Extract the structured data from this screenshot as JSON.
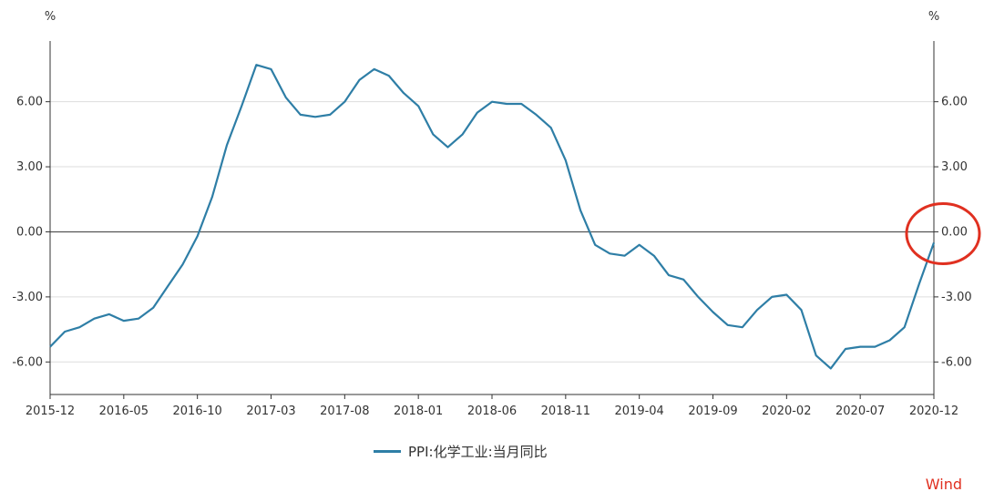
{
  "chart_data": {
    "type": "line",
    "left_axis_unit": "%",
    "right_axis_unit": "%",
    "x": [
      "2015-12",
      "2016-01",
      "2016-02",
      "2016-03",
      "2016-04",
      "2016-05",
      "2016-06",
      "2016-07",
      "2016-08",
      "2016-09",
      "2016-10",
      "2016-11",
      "2016-12",
      "2017-01",
      "2017-02",
      "2017-03",
      "2017-04",
      "2017-05",
      "2017-06",
      "2017-07",
      "2017-08",
      "2017-09",
      "2017-10",
      "2017-11",
      "2017-12",
      "2018-01",
      "2018-02",
      "2018-03",
      "2018-04",
      "2018-05",
      "2018-06",
      "2018-07",
      "2018-08",
      "2018-09",
      "2018-10",
      "2018-11",
      "2018-12",
      "2019-01",
      "2019-02",
      "2019-03",
      "2019-04",
      "2019-05",
      "2019-06",
      "2019-07",
      "2019-08",
      "2019-09",
      "2019-10",
      "2019-11",
      "2019-12",
      "2020-01",
      "2020-02",
      "2020-03",
      "2020-04",
      "2020-05",
      "2020-06",
      "2020-07",
      "2020-08",
      "2020-09",
      "2020-10",
      "2020-11",
      "2020-12"
    ],
    "x_tick_labels": [
      "2015-12",
      "2016-05",
      "2016-10",
      "2017-03",
      "2017-08",
      "2018-01",
      "2018-06",
      "2018-11",
      "2019-04",
      "2019-09",
      "2020-02",
      "2020-07",
      "2020-12"
    ],
    "y_tick_labels": [
      "6.00",
      "3.00",
      "0.00",
      "-3.00",
      "-6.00"
    ],
    "y_ticks": [
      6,
      3,
      0,
      -3,
      -6
    ],
    "ylim": [
      -7.5,
      8.8
    ],
    "series": [
      {
        "name": "PPI:化学工业:当月同比",
        "values": [
          -5.3,
          -4.6,
          -4.4,
          -4.0,
          -3.8,
          -4.1,
          -4.0,
          -3.5,
          -2.5,
          -1.5,
          -0.2,
          1.6,
          4.0,
          5.8,
          7.7,
          7.5,
          6.2,
          5.4,
          5.3,
          5.4,
          6.0,
          7.0,
          7.5,
          7.2,
          6.4,
          5.8,
          4.5,
          3.9,
          4.5,
          5.5,
          6.0,
          5.9,
          5.9,
          5.4,
          4.8,
          3.3,
          1.0,
          -0.6,
          -1.0,
          -1.1,
          -0.6,
          -1.1,
          -2.0,
          -2.2,
          -3.0,
          -3.7,
          -4.3,
          -4.4,
          -3.6,
          -3.0,
          -2.9,
          -3.6,
          -5.7,
          -6.3,
          -5.4,
          -5.3,
          -5.3,
          -5.0,
          -4.4,
          -2.4,
          -0.5
        ]
      }
    ],
    "grid": true,
    "legend_position": "bottom-center"
  },
  "colors": {
    "series_line": "#2e7ea6",
    "gridline": "#dddddd",
    "zero_axis": "#555555",
    "axis_frame": "#333333",
    "annotation_circle": "#e03020",
    "source_label": "#e03020"
  },
  "annotation": {
    "type": "circle",
    "target": "right-axis-zero-label"
  },
  "source_label": "Wind"
}
